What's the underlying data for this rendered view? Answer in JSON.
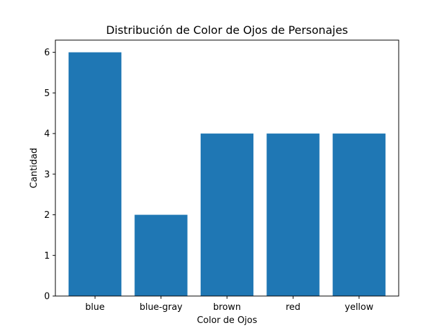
{
  "chart_data": {
    "type": "bar",
    "title": "Distribución de Color de Ojos de Personajes",
    "xlabel": "Color de Ojos",
    "ylabel": "Cantidad",
    "categories": [
      "blue",
      "blue-gray",
      "brown",
      "red",
      "yellow"
    ],
    "values": [
      6,
      2,
      4,
      4,
      4
    ],
    "ylim": [
      0,
      6.3
    ],
    "yticks": [
      0,
      1,
      2,
      3,
      4,
      5,
      6
    ],
    "bar_color": "#1f77b4",
    "grid": false
  }
}
